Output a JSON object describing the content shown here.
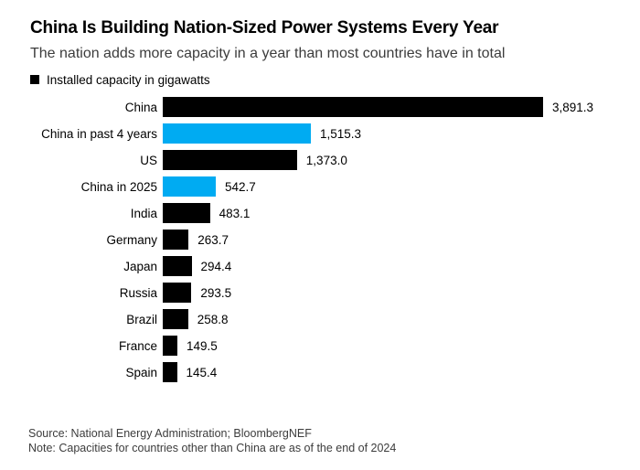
{
  "header": {
    "title": "China Is Building Nation-Sized Power Systems Every Year",
    "subtitle": "The nation adds more capacity in a year than most countries have in total"
  },
  "legend": {
    "label": "Installed capacity in gigawatts",
    "swatch_color": "#000000"
  },
  "chart_data": {
    "type": "bar",
    "orientation": "horizontal",
    "title": "China Is Building Nation-Sized Power Systems Every Year",
    "subtitle": "The nation adds more capacity in a year than most countries have in total",
    "series_label": "Installed capacity in gigawatts",
    "unit": "gigawatts",
    "xlim": [
      0,
      3891.3
    ],
    "grid": false,
    "legend_position": "top-left",
    "bar_color": "#000000",
    "highlight_color": "#00abf2",
    "rows": [
      {
        "label": "China",
        "value": 3891.3,
        "value_label": "3,891.3",
        "highlighted": false
      },
      {
        "label": "China in past 4 years",
        "value": 1515.3,
        "value_label": "1,515.3",
        "highlighted": true
      },
      {
        "label": "US",
        "value": 1373.0,
        "value_label": "1,373.0",
        "highlighted": false
      },
      {
        "label": "China in 2025",
        "value": 542.7,
        "value_label": "542.7",
        "highlighted": true
      },
      {
        "label": "India",
        "value": 483.1,
        "value_label": "483.1",
        "highlighted": false
      },
      {
        "label": "Germany",
        "value": 263.7,
        "value_label": "263.7",
        "highlighted": false
      },
      {
        "label": "Japan",
        "value": 294.4,
        "value_label": "294.4",
        "highlighted": false
      },
      {
        "label": "Russia",
        "value": 293.5,
        "value_label": "293.5",
        "highlighted": false
      },
      {
        "label": "Brazil",
        "value": 258.8,
        "value_label": "258.8",
        "highlighted": false
      },
      {
        "label": "France",
        "value": 149.5,
        "value_label": "149.5",
        "highlighted": false
      },
      {
        "label": "Spain",
        "value": 145.4,
        "value_label": "145.4",
        "highlighted": false
      }
    ]
  },
  "footer": {
    "source": "Source: National Energy Administration; BloombergNEF",
    "note": "Note: Capacities for countries other than China are as of the end of 2024"
  }
}
